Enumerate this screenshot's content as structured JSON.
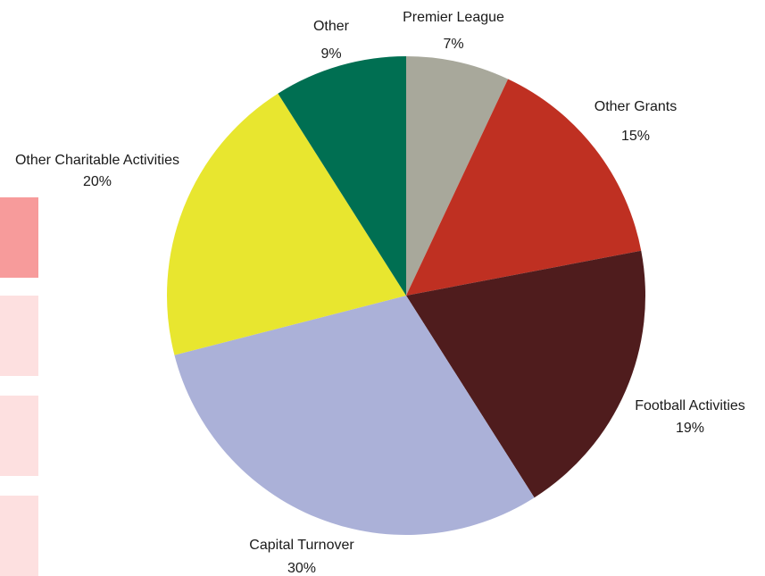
{
  "colors": {
    "background": "#ffffff",
    "side_tab_active": "#f79b9b",
    "side_tab_inactive": "#fde0e0"
  },
  "side_tabs": [
    {
      "state": "active"
    },
    {
      "state": "inactive"
    },
    {
      "state": "inactive"
    },
    {
      "state": "inactive"
    }
  ],
  "chart_data": {
    "type": "pie",
    "title": "",
    "start_angle_deg": 0,
    "direction": "clockwise",
    "slices": [
      {
        "name": "Premier League",
        "value": 7,
        "label": "7%",
        "color": "#a8a89b"
      },
      {
        "name": "Other Grants",
        "value": 15,
        "label": "15%",
        "color": "#bf3022"
      },
      {
        "name": "Football Activities",
        "value": 19,
        "label": "19%",
        "color": "#4f1c1d"
      },
      {
        "name": "Capital Turnover",
        "value": 30,
        "label": "30%",
        "color": "#abb1d8"
      },
      {
        "name": "Other Charitable Activities",
        "value": 20,
        "label": "20%",
        "color": "#e8e62f"
      },
      {
        "name": "Other",
        "value": 9,
        "label": "9%",
        "color": "#006f52"
      }
    ]
  }
}
